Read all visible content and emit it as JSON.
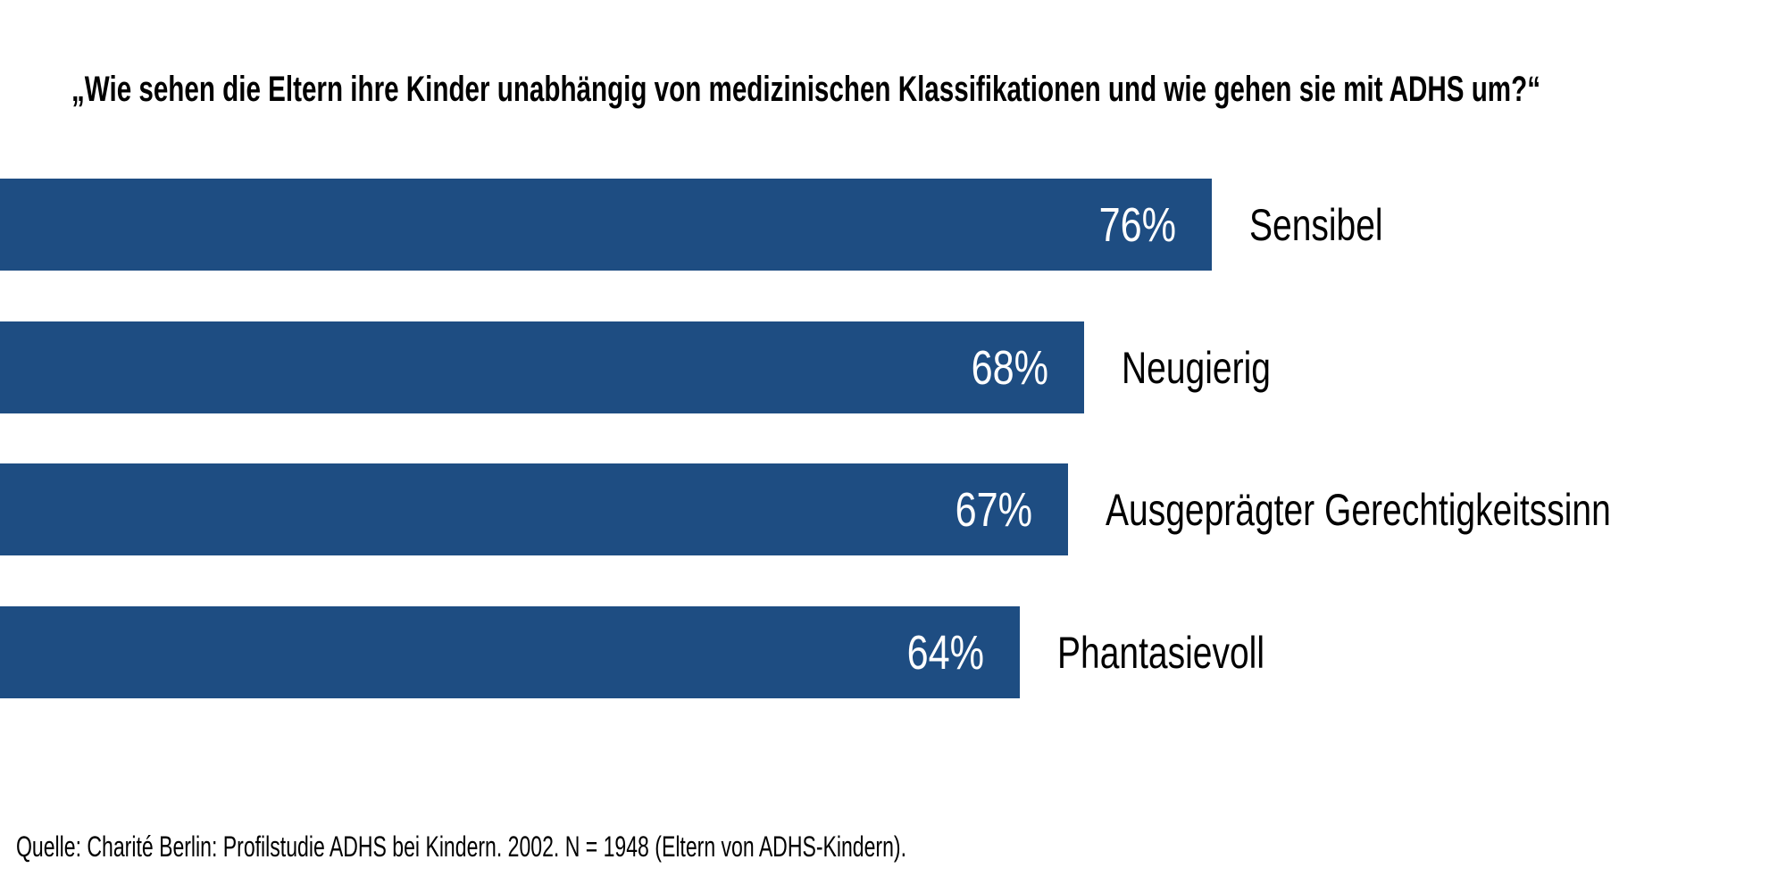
{
  "title": "„Wie sehen die Eltern ihre Kinder unabhängig von medizinischen Klassifikationen und wie gehen sie mit ADHS um?“",
  "source": "Quelle: Charité Berlin: Profilstudie ADHS bei Kindern. 2002. N = 1948 (Eltern von ADHS-Kindern).",
  "colors": {
    "bar": "#1e4d82",
    "value_text": "#ffffff",
    "text": "#000000",
    "background": "#ffffff"
  },
  "chart_data": {
    "type": "bar",
    "orientation": "horizontal",
    "title": "„Wie sehen die Eltern ihre Kinder unabhängig von medizinischen Klassifikationen und wie gehen sie mit ADHS um?“",
    "categories": [
      "Sensibel",
      "Neugierig",
      "Ausgeprägter Gerechtigkeitssinn",
      "Phantasievoll"
    ],
    "values": [
      76,
      68,
      67,
      64
    ],
    "value_labels": [
      "76%",
      "68%",
      "67%",
      "64%"
    ],
    "unit": "%",
    "xlim": [
      0,
      100
    ],
    "grid": false,
    "legend": false,
    "axes_visible": false,
    "value_label_position": "inside-end",
    "category_label_position": "outside-end",
    "source": "Quelle: Charité Berlin: Profilstudie ADHS bei Kindern. 2002. N = 1948 (Eltern von ADHS-Kindern)."
  }
}
